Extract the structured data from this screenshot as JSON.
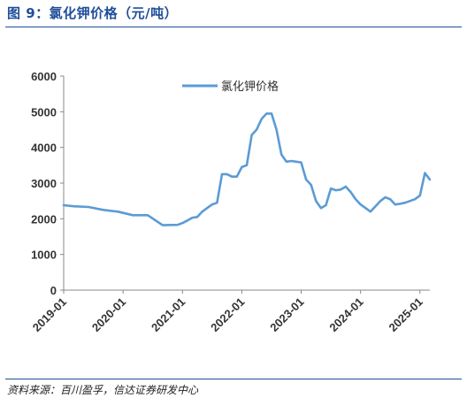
{
  "figure": {
    "title": "图 9：氯化钾价格（元/吨）",
    "source": "资料来源：百川盈孚，信达证券研发中心"
  },
  "colors": {
    "accent": "#1f4e99",
    "series": "#5b9bd5"
  },
  "chart_data": {
    "type": "line",
    "title": "",
    "xlabel": "",
    "ylabel": "",
    "ylim": [
      0,
      6000
    ],
    "yticks": [
      0,
      1000,
      2000,
      3000,
      4000,
      5000,
      6000
    ],
    "xlim": [
      "2019-01",
      "2025-03"
    ],
    "xticks": [
      "2019-01",
      "2020-01",
      "2021-01",
      "2022-01",
      "2023-01",
      "2024-01",
      "2025-01"
    ],
    "legend": "top-center",
    "grid": false,
    "series": [
      {
        "name": "氯化钾价格",
        "color": "#5b9bd5",
        "x": [
          "2019-01",
          "2019-03",
          "2019-06",
          "2019-09",
          "2019-12",
          "2020-03",
          "2020-06",
          "2020-09",
          "2020-12",
          "2021-01",
          "2021-02",
          "2021-03",
          "2021-04",
          "2021-05",
          "2021-06",
          "2021-07",
          "2021-08",
          "2021-09",
          "2021-10",
          "2021-11",
          "2021-12",
          "2022-01",
          "2022-02",
          "2022-03",
          "2022-04",
          "2022-05",
          "2022-06",
          "2022-07",
          "2022-08",
          "2022-09",
          "2022-10",
          "2022-11",
          "2022-12",
          "2023-01",
          "2023-02",
          "2023-03",
          "2023-04",
          "2023-05",
          "2023-06",
          "2023-07",
          "2023-08",
          "2023-09",
          "2023-10",
          "2023-11",
          "2023-12",
          "2024-01",
          "2024-02",
          "2024-03",
          "2024-04",
          "2024-05",
          "2024-06",
          "2024-07",
          "2024-08",
          "2024-09",
          "2024-10",
          "2024-11",
          "2024-12",
          "2025-01",
          "2025-02",
          "2025-03"
        ],
        "y": [
          2380,
          2350,
          2330,
          2250,
          2200,
          2100,
          2100,
          1820,
          1830,
          1880,
          1950,
          2030,
          2050,
          2200,
          2300,
          2400,
          2450,
          3250,
          3250,
          3180,
          3180,
          3450,
          3500,
          4350,
          4500,
          4800,
          4950,
          4950,
          4500,
          3800,
          3600,
          3620,
          3600,
          3580,
          3100,
          2950,
          2500,
          2300,
          2380,
          2850,
          2800,
          2820,
          2900,
          2750,
          2550,
          2400,
          2300,
          2200,
          2350,
          2500,
          2600,
          2550,
          2400,
          2420,
          2450,
          2500,
          2550,
          2650,
          3280,
          3100
        ]
      }
    ]
  }
}
